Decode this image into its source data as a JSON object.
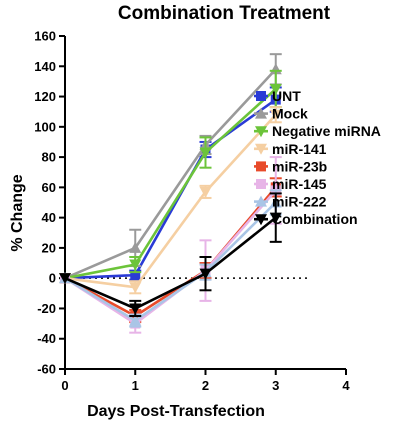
{
  "chart_data": {
    "type": "line",
    "title": "Combination Treatment",
    "xlabel": "Days Post-Transfection",
    "ylabel": "% Change",
    "xlim": [
      0,
      4
    ],
    "ylim": [
      -60,
      160
    ],
    "xticks": [
      "0",
      "1",
      "2",
      "3",
      "4"
    ],
    "yticks": [
      "160",
      "140",
      "120",
      "100",
      "80",
      "60",
      "40",
      "20",
      "0",
      "-20",
      "-40",
      "-60"
    ],
    "x": [
      0,
      1,
      2,
      3
    ],
    "zero_line": "dotted",
    "legend_position": "right",
    "series": [
      {
        "name": "UNT",
        "color": "#2a3bd6",
        "marker": "square",
        "values": [
          0,
          2,
          85,
          118
        ],
        "errors": [
          0,
          3,
          5,
          8
        ]
      },
      {
        "name": "Mock",
        "color": "#9a9a9a",
        "marker": "triangle-up",
        "values": [
          0,
          20,
          88,
          138
        ],
        "errors": [
          0,
          12,
          6,
          10
        ]
      },
      {
        "name": "Negative miRNA",
        "color": "#6cc43a",
        "marker": "triangle-down",
        "values": [
          0,
          9,
          83,
          125
        ],
        "errors": [
          0,
          5,
          10,
          12
        ]
      },
      {
        "name": "miR-141",
        "color": "#f5cfa2",
        "marker": "triangle-down",
        "values": [
          0,
          -6,
          57,
          108
        ],
        "errors": [
          0,
          4,
          4,
          5
        ]
      },
      {
        "name": "miR-23b",
        "color": "#e84a2a",
        "marker": "square",
        "values": [
          0,
          -25,
          5,
          60
        ],
        "errors": [
          0,
          4,
          5,
          6
        ]
      },
      {
        "name": "miR-145",
        "color": "#e7b4e7",
        "marker": "square",
        "values": [
          0,
          -30,
          5,
          58
        ],
        "errors": [
          0,
          6,
          20,
          22
        ]
      },
      {
        "name": "miR-222",
        "color": "#a9c5e6",
        "marker": "triangle-up",
        "values": [
          0,
          -28,
          4,
          50
        ],
        "errors": [
          0,
          4,
          5,
          8
        ]
      },
      {
        "name": "Combination",
        "color": "#000000",
        "marker": "triangle-down",
        "values": [
          0,
          -20,
          3,
          40
        ],
        "errors": [
          0,
          5,
          11,
          16
        ]
      }
    ]
  }
}
